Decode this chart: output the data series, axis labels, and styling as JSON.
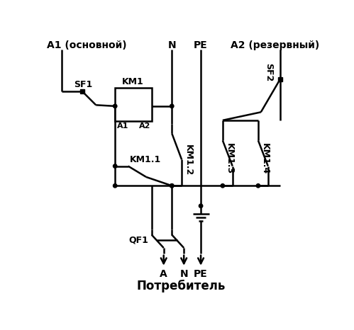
{
  "bg": "#ffffff",
  "lc": "#000000",
  "lw": 1.8,
  "figsize": [
    4.99,
    4.66
  ],
  "dpi": 100,
  "labels": {
    "A1_main": "A1 (основной)",
    "A2_res": "A2 (резервный)",
    "N": "N",
    "PE": "PE",
    "SF1": "SF1",
    "SF2": "SF2",
    "KM1": "KM1",
    "A1t": "A1",
    "A2t": "A2",
    "KM1_1": "KM1.1",
    "KM1_2": "KM1.2",
    "KM1_3": "KM1.3",
    "KM1_4": "KM1.4",
    "QF1": "QF1",
    "A_out": "A",
    "N_out": "N",
    "PE_out": "PE",
    "consumer": "Потребитель"
  }
}
